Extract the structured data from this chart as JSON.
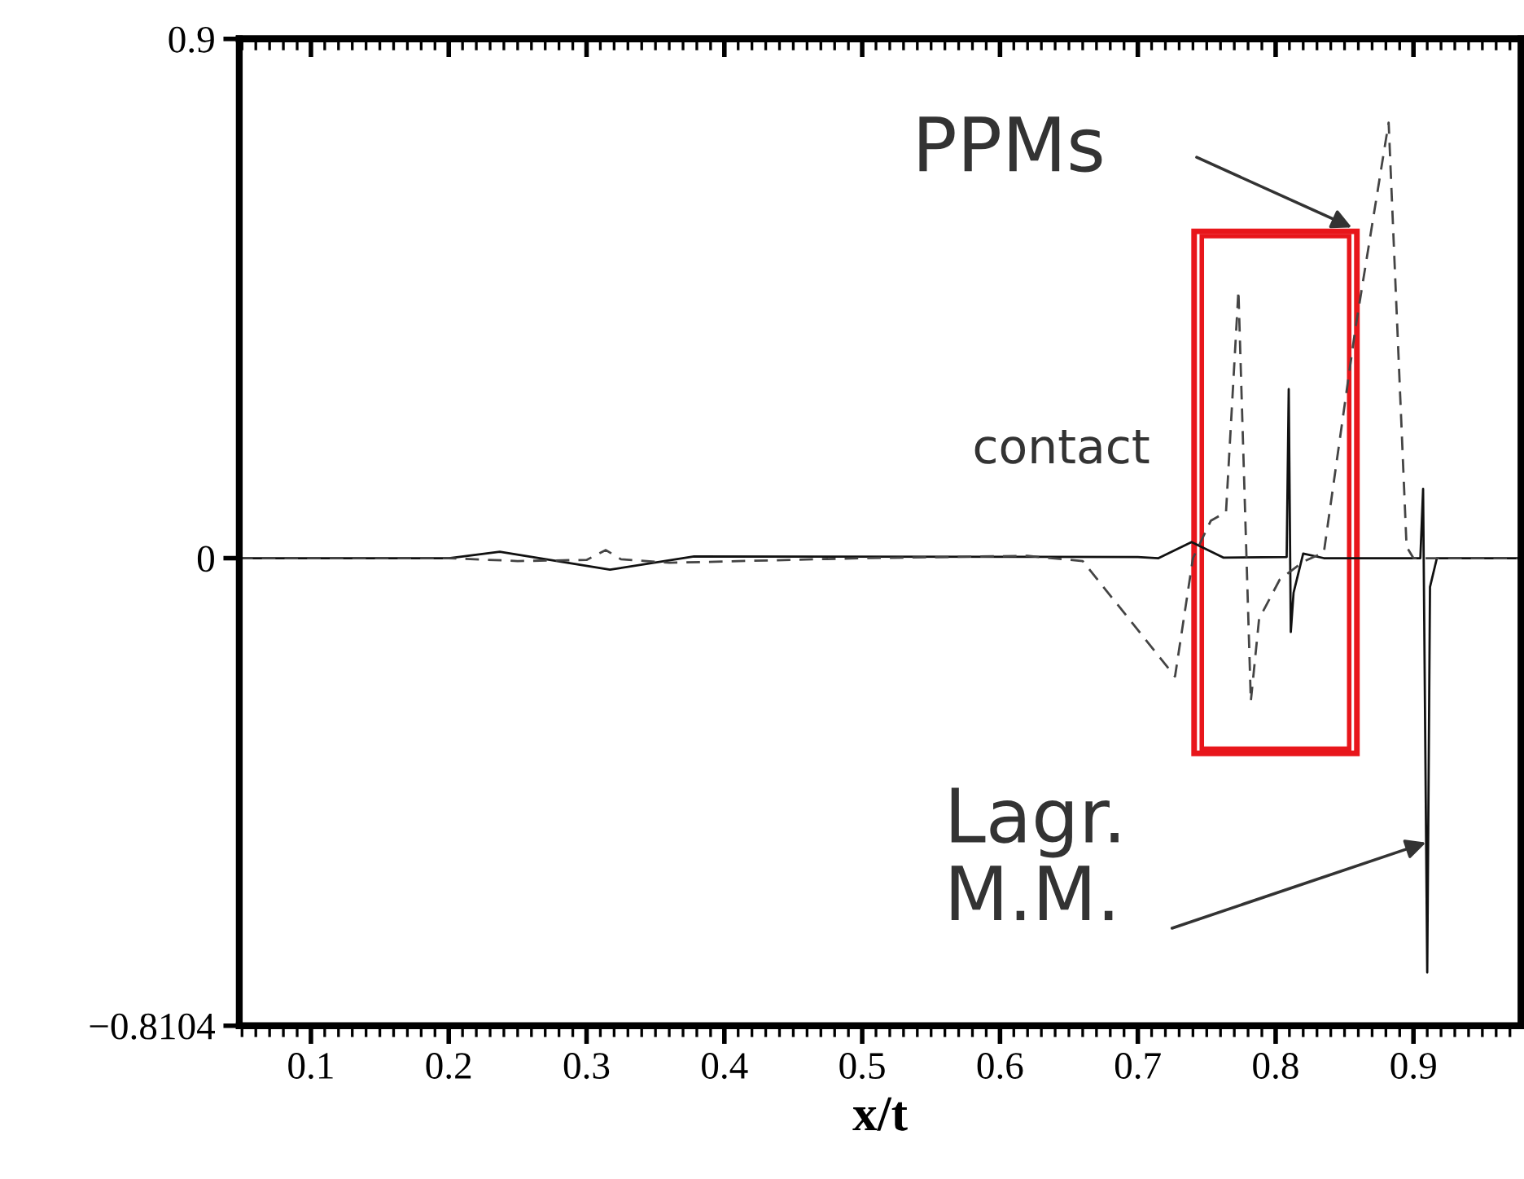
{
  "chart_data": {
    "type": "line",
    "xlabel": "x/t",
    "xlim": [
      0.048,
      0.978
    ],
    "ylim": [
      -0.8104,
      0.9
    ],
    "xticks": [
      0.1,
      0.2,
      0.3,
      0.4,
      0.5,
      0.6,
      0.7,
      0.8,
      0.9
    ],
    "yticks": [
      0.9,
      0,
      {
        "value": -0.8104,
        "label": "−0.8104"
      }
    ],
    "grid": false,
    "legend": false,
    "marker": "none",
    "series": [
      {
        "color": "#111111",
        "line_style": "solid",
        "x": [
          0.048,
          0.2,
          0.237,
          0.317,
          0.378,
          0.7,
          0.715,
          0.739,
          0.762,
          0.808,
          0.8095,
          0.811,
          0.813,
          0.82,
          0.835,
          0.905,
          0.907,
          0.91,
          0.912,
          0.917,
          0.978
        ],
        "values": [
          0,
          0,
          0.011,
          -0.02,
          0.003,
          0.002,
          0,
          0.028,
          0.001,
          0.002,
          0.293,
          -0.128,
          -0.06,
          0.008,
          0,
          0,
          0.12,
          -0.718,
          -0.05,
          0,
          0
        ]
      },
      {
        "color": "#444444",
        "line_style": "dashed",
        "x": [
          0.048,
          0.2,
          0.25,
          0.3,
          0.314,
          0.325,
          0.36,
          0.5,
          0.62,
          0.66,
          0.727,
          0.74,
          0.753,
          0.764,
          0.773,
          0.782,
          0.788,
          0.803,
          0.82,
          0.835,
          0.858,
          0.882,
          0.895,
          0.9,
          0.978
        ],
        "values": [
          0,
          0,
          -0.005,
          -0.003,
          0.014,
          -0.002,
          -0.008,
          0,
          0.004,
          -0.005,
          -0.205,
          0,
          0.065,
          0.08,
          0.464,
          -0.248,
          -0.105,
          -0.037,
          -0.006,
          0.01,
          0.4,
          0.755,
          0.02,
          0,
          0
        ]
      }
    ],
    "annotations": [
      "PPMs",
      "contact",
      {
        "text": "Lagr.\nM.M.",
        "x": 0.909,
        "y": -0.493
      }
    ]
  }
}
